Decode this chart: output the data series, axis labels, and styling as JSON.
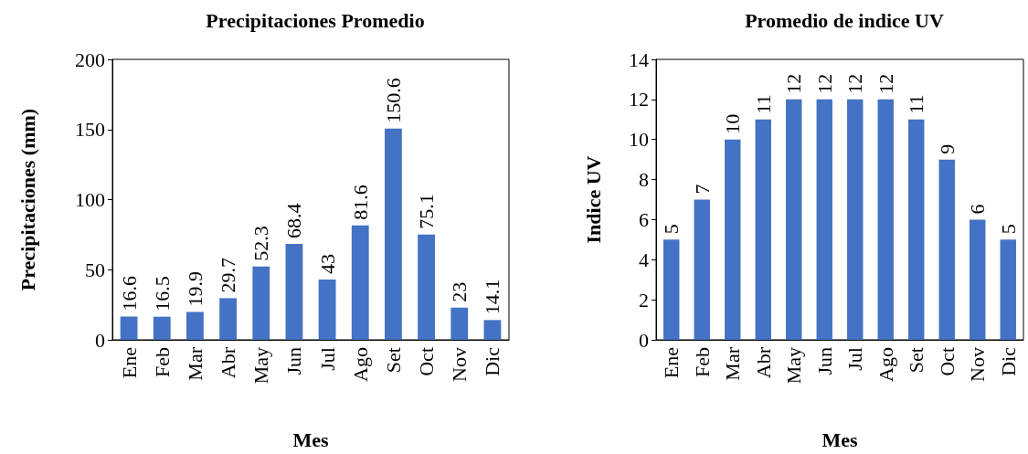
{
  "chart_data": [
    {
      "type": "bar",
      "title": "Precipitaciones Promedio",
      "xlabel": "Mes",
      "ylabel": "Precipitaciones (mm)",
      "categories": [
        "Ene",
        "Feb",
        "Mar",
        "Abr",
        "May",
        "Jun",
        "Jul",
        "Ago",
        "Set",
        "Oct",
        "Nov",
        "Dic"
      ],
      "values": [
        16.6,
        16.5,
        19.9,
        29.7,
        52.3,
        68.4,
        43,
        81.6,
        150.6,
        75.1,
        23,
        14.1
      ],
      "color": "#4472c4",
      "ylim": [
        0,
        200
      ],
      "yticks": [
        0,
        50,
        100,
        150,
        200
      ],
      "data_labels": true
    },
    {
      "type": "bar",
      "title": "Promedio de indice UV",
      "xlabel": "Mes",
      "ylabel": "Indice UV",
      "categories": [
        "Ene",
        "Feb",
        "Mar",
        "Abr",
        "May",
        "Jun",
        "Jul",
        "Ago",
        "Set",
        "Oct",
        "Nov",
        "Dic"
      ],
      "values": [
        5,
        7,
        10,
        11,
        12,
        12,
        12,
        12,
        11,
        9,
        6,
        5
      ],
      "color": "#4472c4",
      "ylim": [
        0,
        14
      ],
      "yticks": [
        0,
        2,
        4,
        6,
        8,
        10,
        12,
        14
      ],
      "data_labels": true
    }
  ]
}
